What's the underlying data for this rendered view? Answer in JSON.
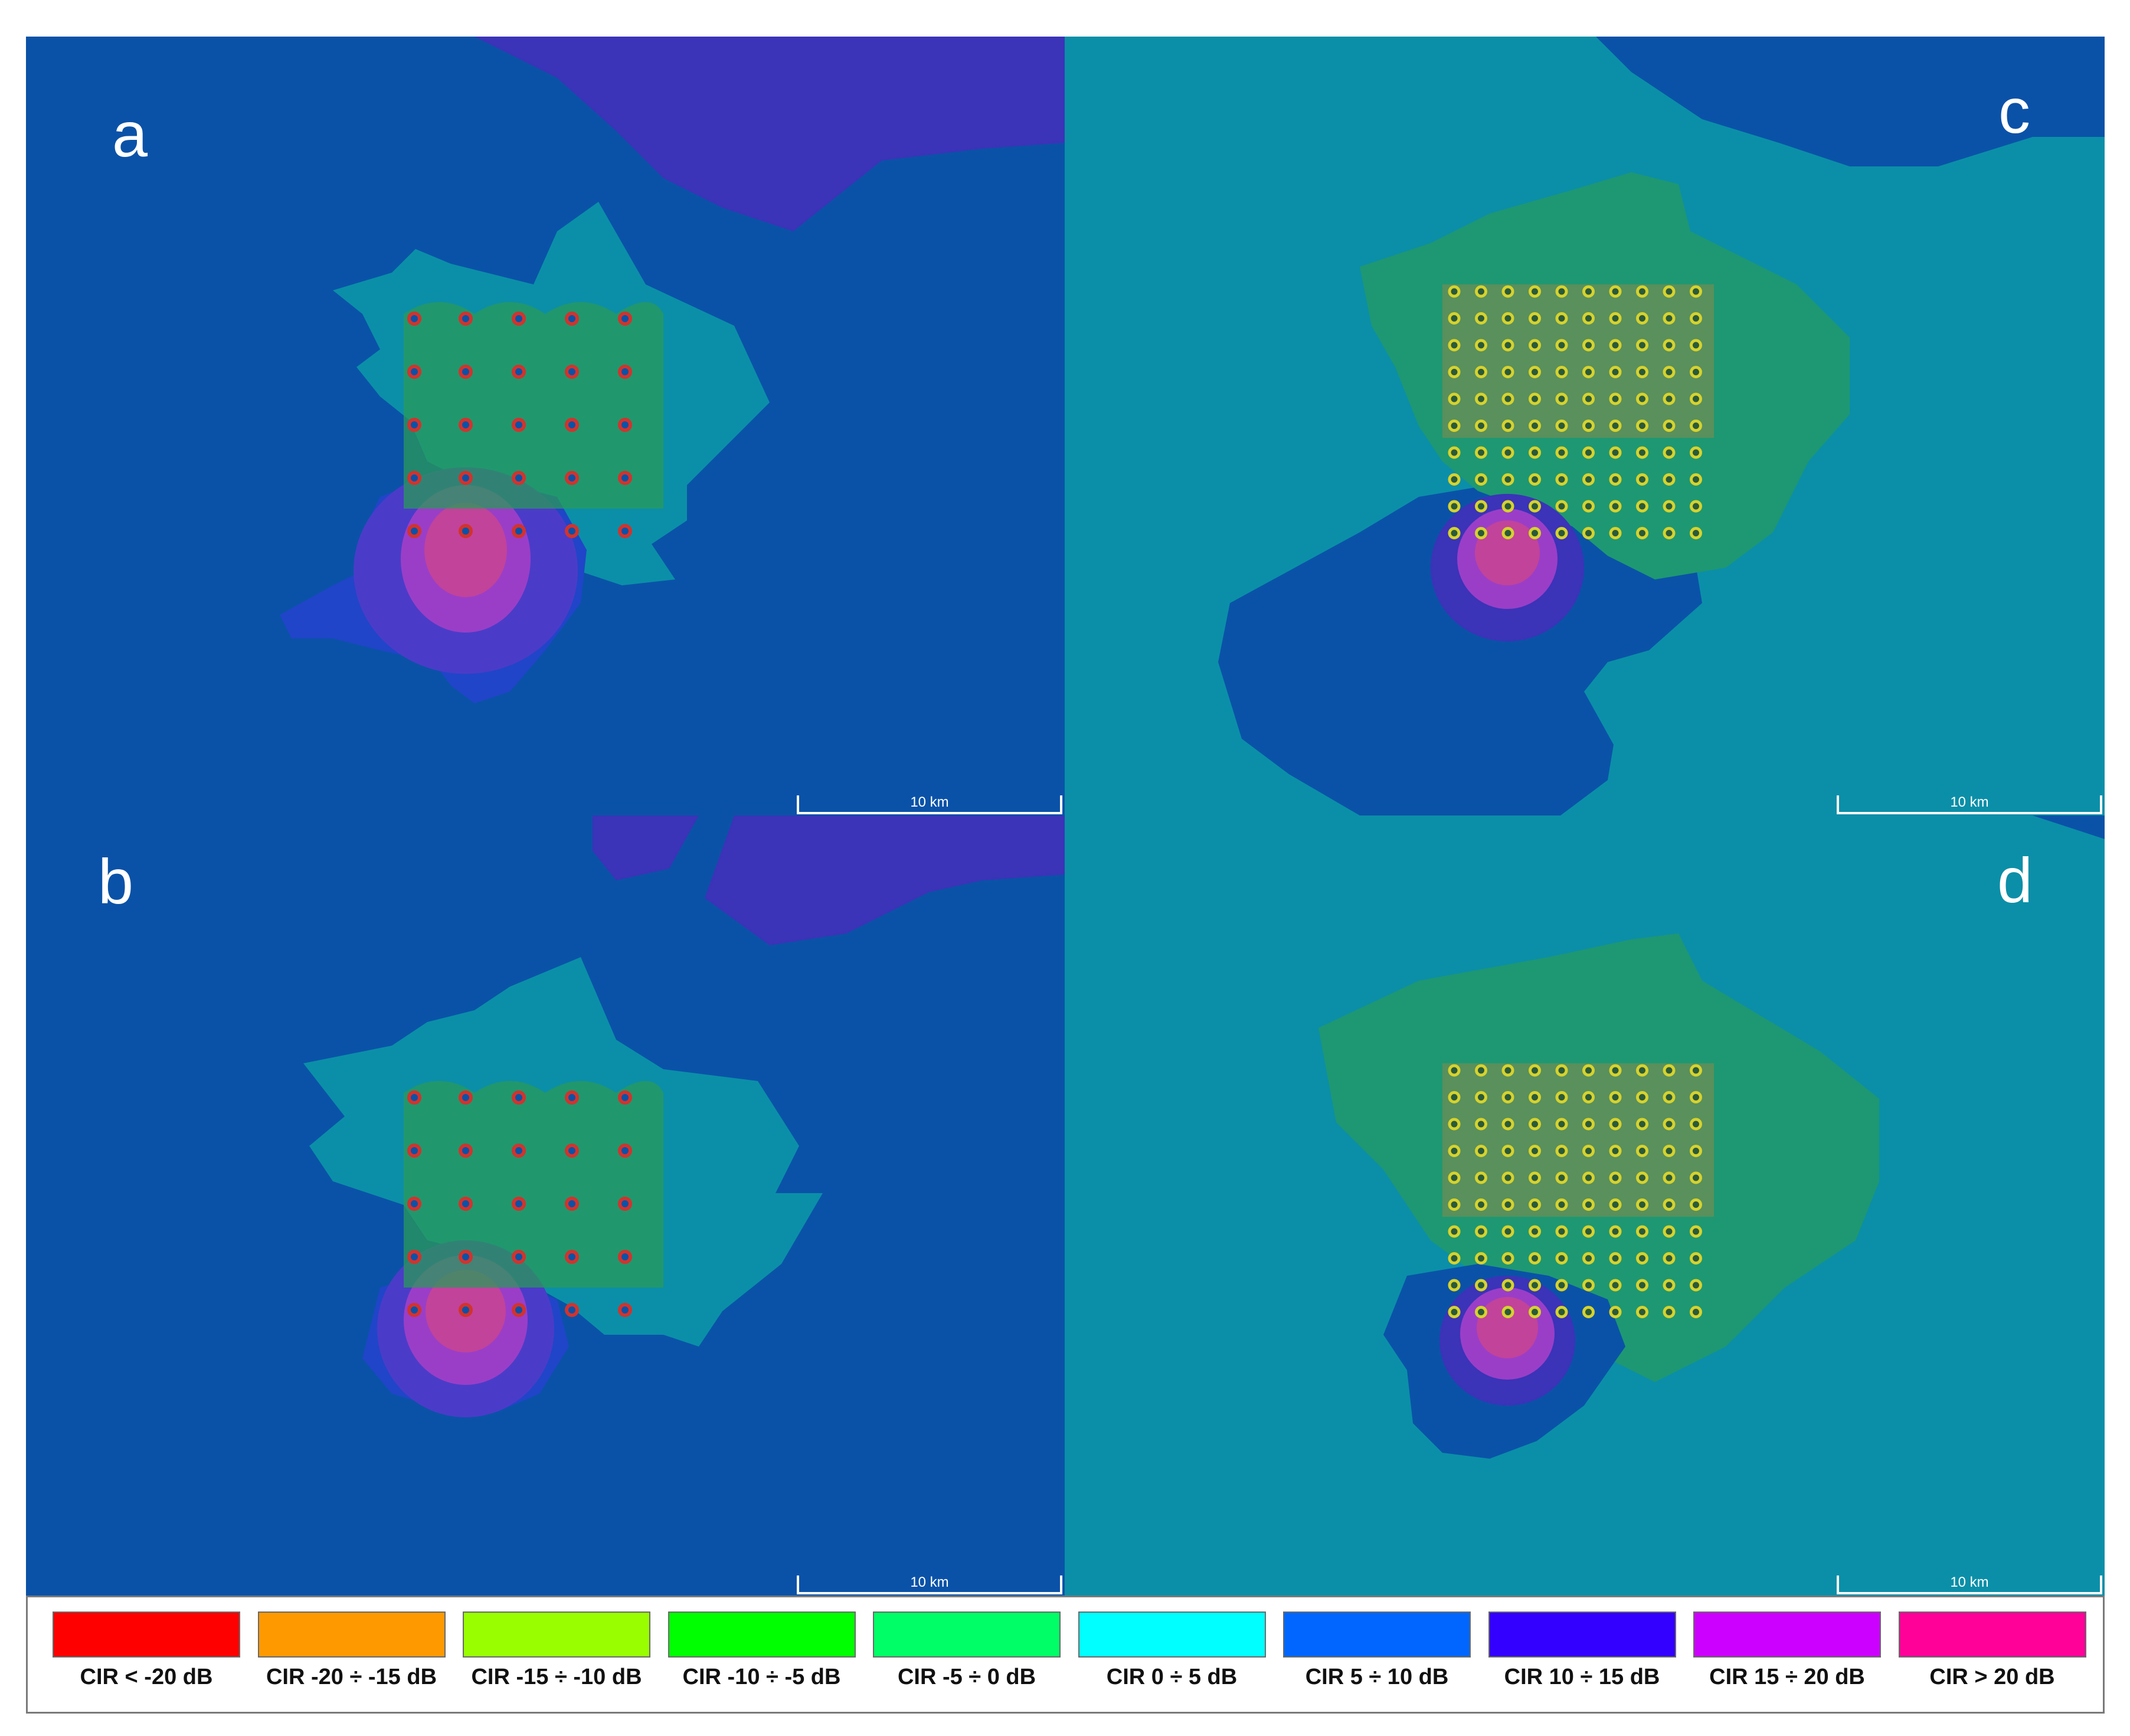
{
  "figure": {
    "panels": [
      {
        "letter": "a",
        "scale_label": "10 km"
      },
      {
        "letter": "b",
        "scale_label": "10 km"
      },
      {
        "letter": "c",
        "scale_label": "10 km"
      },
      {
        "letter": "d",
        "scale_label": "10 km"
      }
    ],
    "legend": [
      {
        "label": "CIR < -20 dB",
        "color": "#ff0000"
      },
      {
        "label": "CIR -20 ÷ -15 dB",
        "color": "#ff9900"
      },
      {
        "label": "CIR -15 ÷ -10 dB",
        "color": "#99ff00"
      },
      {
        "label": "CIR -10 ÷ -5 dB",
        "color": "#00ff00"
      },
      {
        "label": "CIR -5 ÷ 0 dB",
        "color": "#00ff66"
      },
      {
        "label": "CIR 0 ÷ 5 dB",
        "color": "#00ffff"
      },
      {
        "label": "CIR 5 ÷ 10 dB",
        "color": "#0066ff"
      },
      {
        "label": "CIR 10 ÷ 15 dB",
        "color": "#3300ff"
      },
      {
        "label": "CIR 15 ÷ 20 dB",
        "color": "#cc00ff"
      },
      {
        "label": "CIR > 20 dB",
        "color": "#ff0099"
      }
    ]
  }
}
